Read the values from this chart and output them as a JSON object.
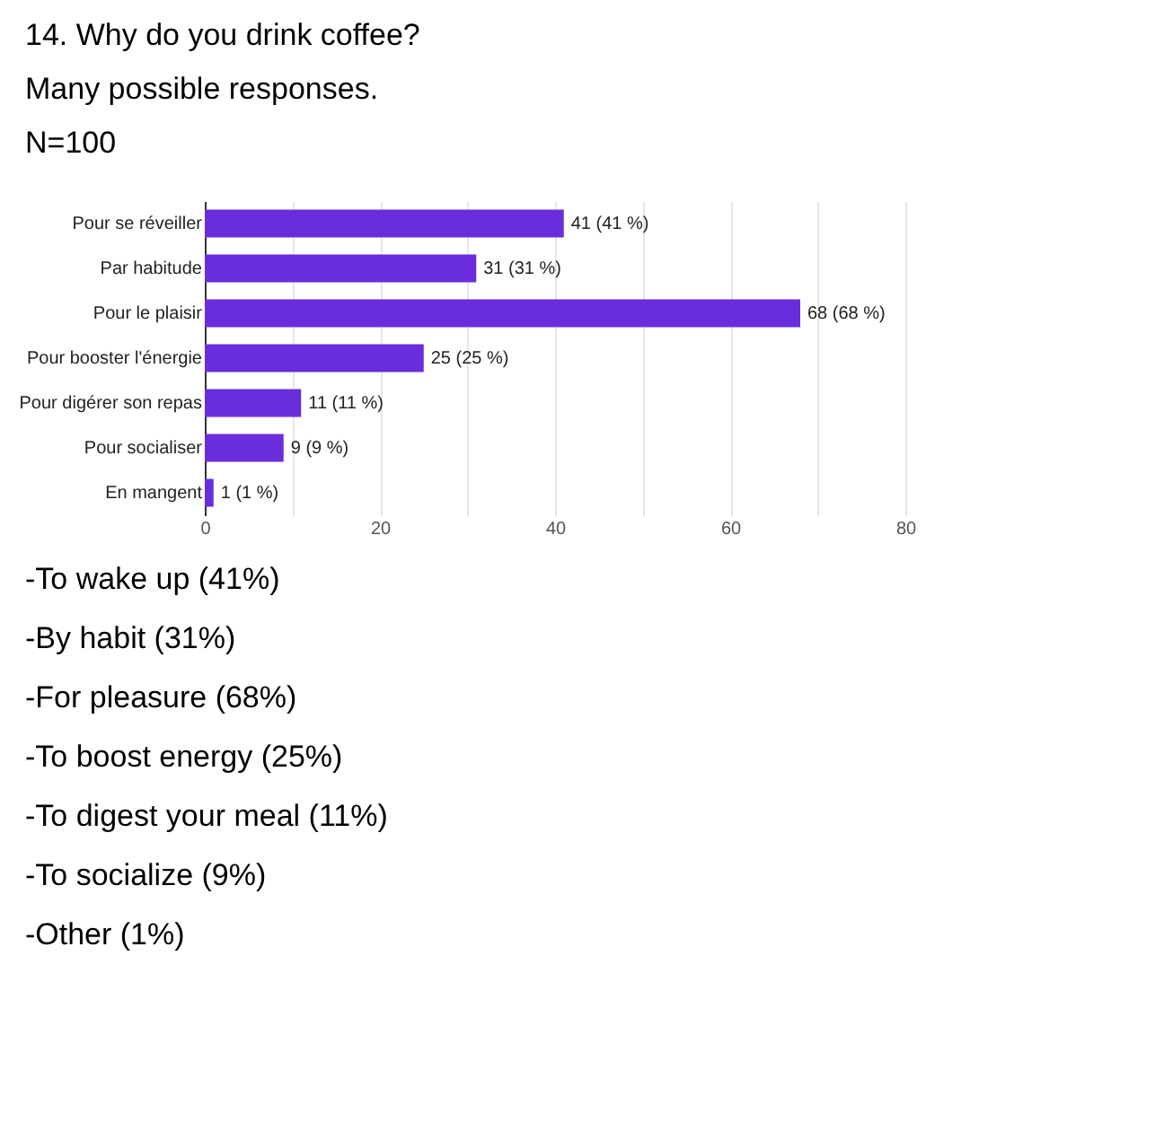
{
  "chart_data": {
    "type": "bar",
    "orientation": "horizontal",
    "title": "14. Why do you drink coffee?",
    "subtitle": "Many possible responses.",
    "categories": [
      "Pour se réveiller",
      "Par habitude",
      "Pour le plaisir",
      "Pour booster l'énergie",
      "Pour digérer son repas",
      "Pour socialiser",
      "En mangent"
    ],
    "values": [
      41,
      31,
      68,
      25,
      11,
      9,
      1
    ],
    "value_labels": [
      "41 (41 %)",
      "31 (31 %)",
      "68 (68 %)",
      "25 (25 %)",
      "11 (11 %)",
      "9 (9 %)",
      "1 (1 %)"
    ],
    "color": "#6a2ddb",
    "xlim": [
      0,
      80
    ],
    "xticks": [
      0,
      {
        "value": 10,
        "label": null
      },
      20,
      {
        "value": 30,
        "label": null
      },
      40,
      {
        "value": 50,
        "label": null
      },
      60,
      {
        "value": 70,
        "label": null
      },
      80
    ],
    "grid": "x",
    "annotations": [
      "N=100",
      "-To wake up (41%)",
      "-By habit (31%)",
      "-For pleasure (68%)",
      "-To boost energy (25%)",
      "-To digest your meal (11%)",
      "-To socialize (9%)",
      "-Other (1%)"
    ]
  }
}
